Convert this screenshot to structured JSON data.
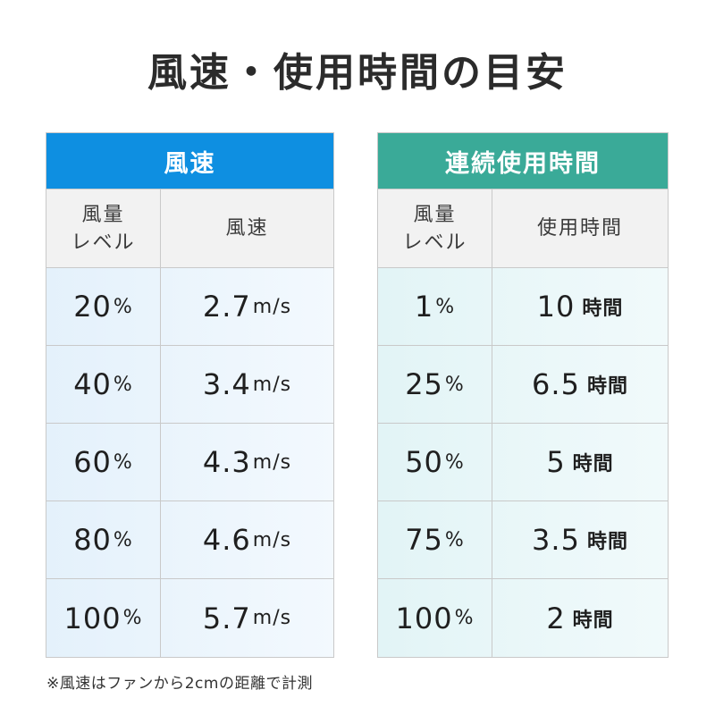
{
  "title": "風速・使用時間の目安",
  "left_table": {
    "header": "風速",
    "col1_lines": [
      "風量",
      "レベル"
    ],
    "col2": "風速",
    "rows": [
      {
        "level": "20",
        "level_unit": "%",
        "value": "2.7",
        "unit": "m/s"
      },
      {
        "level": "40",
        "level_unit": "%",
        "value": "3.4",
        "unit": "m/s"
      },
      {
        "level": "60",
        "level_unit": "%",
        "value": "4.3",
        "unit": "m/s"
      },
      {
        "level": "80",
        "level_unit": "%",
        "value": "4.6",
        "unit": "m/s"
      },
      {
        "level": "100",
        "level_unit": "%",
        "value": "5.7",
        "unit": "m/s"
      }
    ]
  },
  "right_table": {
    "header": "連続使用時間",
    "col1_lines": [
      "風量",
      "レベル"
    ],
    "col2": "使用時間",
    "rows": [
      {
        "level": "1",
        "level_unit": "%",
        "value": "10",
        "unit": "時間"
      },
      {
        "level": "25",
        "level_unit": "%",
        "value": "6.5",
        "unit": "時間"
      },
      {
        "level": "50",
        "level_unit": "%",
        "value": "5",
        "unit": "時間"
      },
      {
        "level": "75",
        "level_unit": "%",
        "value": "3.5",
        "unit": "時間"
      },
      {
        "level": "100",
        "level_unit": "%",
        "value": "2",
        "unit": "時間"
      }
    ]
  },
  "footnote": "※風速はファンから2cmの距離で計測",
  "colors": {
    "left_header": "#0e8fe1",
    "right_header": "#3aaa98"
  }
}
